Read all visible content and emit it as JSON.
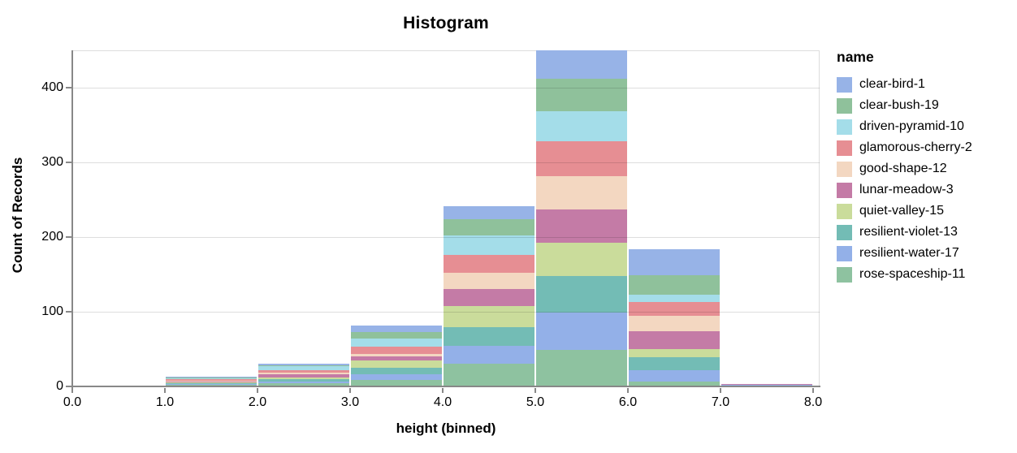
{
  "title": "Histogram",
  "axes": {
    "x": {
      "title": "height (binned)",
      "tick_labels": [
        "0.0",
        "1.0",
        "2.0",
        "3.0",
        "4.0",
        "5.0",
        "6.0",
        "7.0",
        "8.0"
      ],
      "domain": [
        0,
        8
      ]
    },
    "y": {
      "title": "Count of Records",
      "tick_labels": [
        "0",
        "100",
        "200",
        "300",
        "400"
      ],
      "tick_values": [
        0,
        100,
        200,
        300,
        400
      ],
      "domain": [
        0,
        450
      ]
    }
  },
  "legend": {
    "title": "name"
  },
  "chart_data": {
    "type": "bar",
    "subtype": "stacked-histogram",
    "title": "Histogram",
    "xlabel": "height (binned)",
    "ylabel": "Count of Records",
    "xlim": [
      0,
      8
    ],
    "ylim": [
      0,
      450
    ],
    "grid": true,
    "legend_position": "right",
    "bin_edges": [
      0,
      1,
      2,
      3,
      4,
      5,
      6,
      7,
      8
    ],
    "bin_labels": [
      "0-1",
      "1-2",
      "2-3",
      "3-4",
      "4-5",
      "5-6",
      "6-7",
      "7-8"
    ],
    "stack_order": "first-series-on-top",
    "series": [
      {
        "name": "clear-bird-1",
        "color": "#97b3e7",
        "values": [
          0,
          1,
          2,
          9,
          17,
          38,
          35,
          0
        ]
      },
      {
        "name": "clear-bush-19",
        "color": "#8fc19b",
        "values": [
          0,
          1,
          1,
          9,
          22,
          44,
          26,
          0
        ]
      },
      {
        "name": "driven-pyramid-10",
        "color": "#a4dde9",
        "values": [
          0,
          1,
          5,
          11,
          26,
          40,
          10,
          0
        ]
      },
      {
        "name": "glamorous-cherry-2",
        "color": "#e68e93",
        "values": [
          0,
          2,
          4,
          9,
          24,
          46,
          18,
          0
        ]
      },
      {
        "name": "good-shape-12",
        "color": "#f3d7c1",
        "values": [
          0,
          1,
          2,
          4,
          22,
          45,
          21,
          0
        ]
      },
      {
        "name": "lunar-meadow-3",
        "color": "#c47ba6",
        "values": [
          0,
          1,
          4,
          5,
          22,
          45,
          24,
          1
        ]
      },
      {
        "name": "quiet-valley-15",
        "color": "#cadc9b",
        "values": [
          1,
          1,
          2,
          10,
          29,
          44,
          11,
          0
        ]
      },
      {
        "name": "resilient-violet-13",
        "color": "#73bcb5",
        "values": [
          0,
          2,
          3,
          9,
          25,
          49,
          17,
          0
        ]
      },
      {
        "name": "resilient-water-17",
        "color": "#93b0e8",
        "values": [
          0,
          1,
          3,
          7,
          24,
          50,
          16,
          2
        ]
      },
      {
        "name": "rose-spaceship-11",
        "color": "#8ec2a0",
        "values": [
          0,
          2,
          4,
          9,
          30,
          49,
          6,
          0
        ]
      }
    ],
    "totals": [
      1,
      13,
      30,
      82,
      241,
      450,
      184,
      3
    ]
  }
}
